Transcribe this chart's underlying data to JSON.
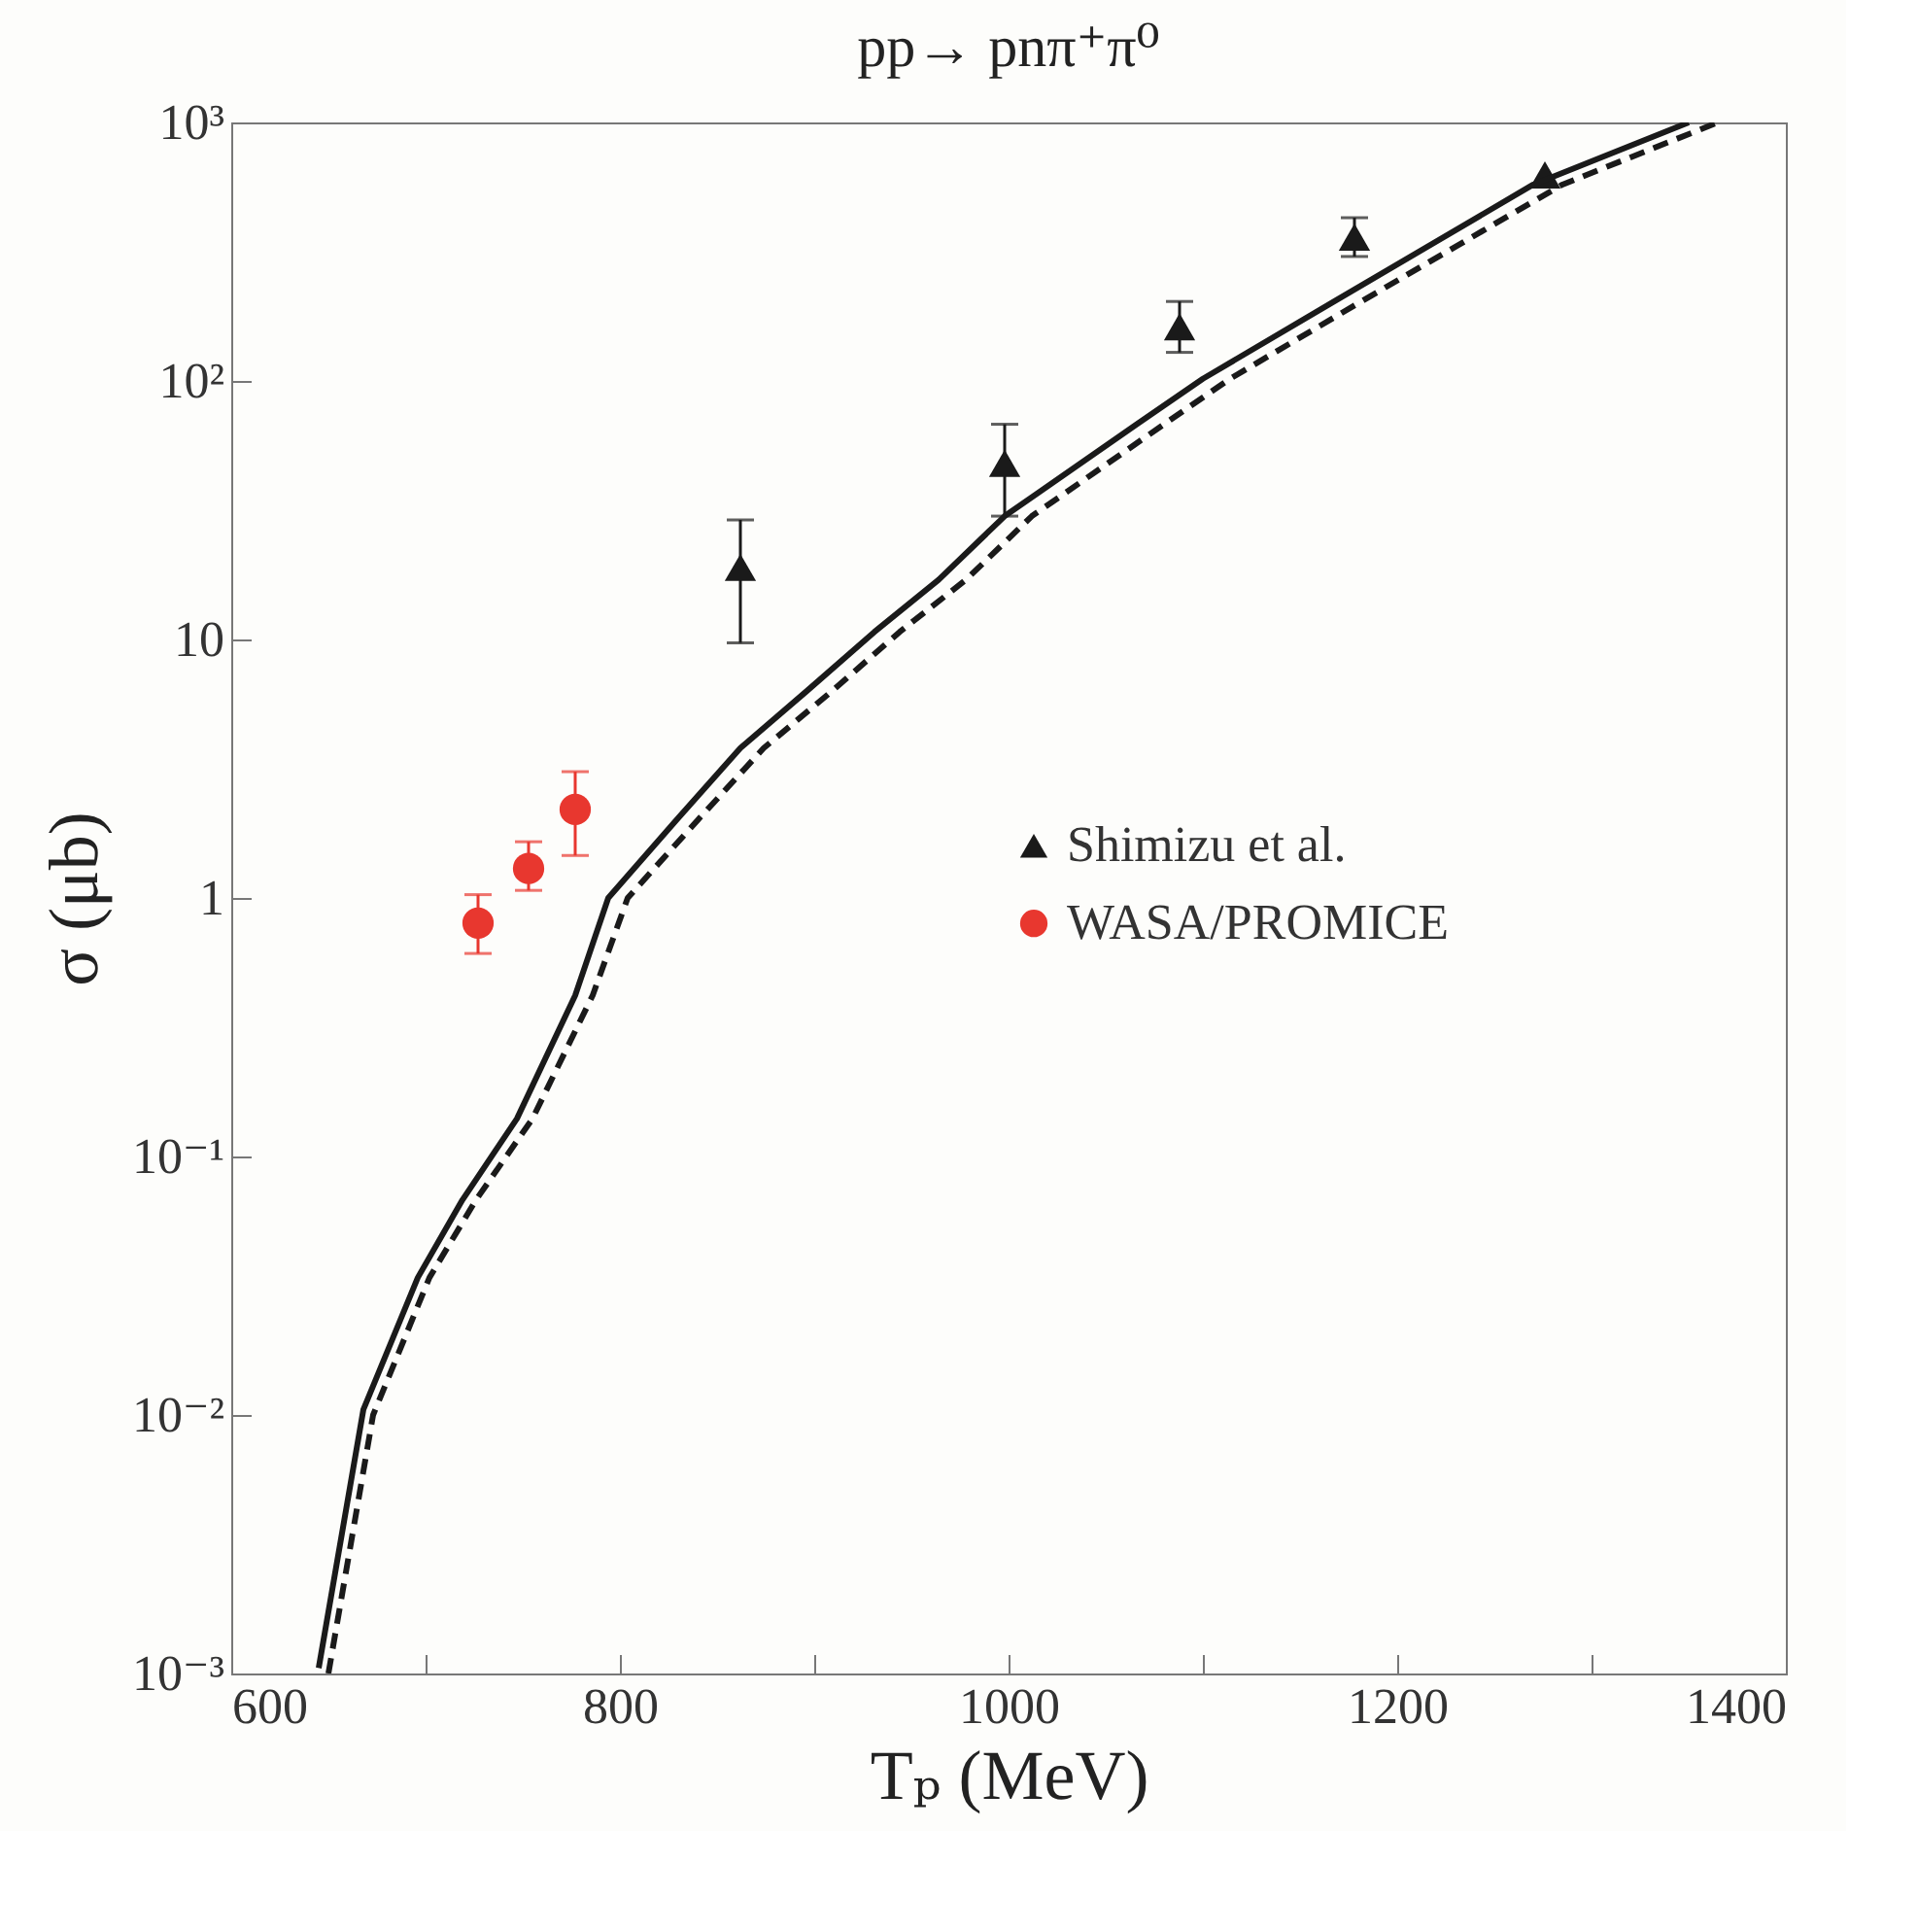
{
  "chart_data": {
    "type": "scatter",
    "title": "pp→ pnπ⁺π⁰",
    "xlabel": "Tₚ (MeV)",
    "ylabel": "σ (μb)",
    "log": "y",
    "grid": false,
    "legend": "right",
    "xlim": [
      600,
      1400
    ],
    "xticks": [
      600,
      {
        "value": 700,
        "label": null
      },
      800,
      {
        "value": 900,
        "label": null
      },
      1000,
      {
        "value": 1100,
        "label": null
      },
      1200,
      {
        "value": 1300,
        "label": null
      },
      1400
    ],
    "ylim": [
      0.001,
      1000
    ],
    "yticks": [
      {
        "value": 0.001,
        "label": "10⁻³"
      },
      {
        "value": 0.01,
        "label": "10⁻²"
      },
      {
        "value": 0.1,
        "label": "10⁻¹"
      },
      1,
      10,
      {
        "value": 100,
        "label": "10²"
      },
      {
        "value": 1000,
        "label": "10³"
      }
    ],
    "series": [
      {
        "name": "Shimizu et al.",
        "color": "#1a1a1a",
        "marker": "triangle",
        "x": [
          862,
          998,
          1088,
          1178,
          1276
        ],
        "values": [
          19,
          48,
          162,
          360,
          627
        ],
        "errors": [
          [
            9.7,
            29
          ],
          [
            30,
            68
          ],
          [
            129,
            203
          ],
          [
            303,
            428
          ],
          null
        ]
      },
      {
        "name": "WASA/PROMICE",
        "color": "#e8372f",
        "marker": "circle",
        "x": [
          727,
          753,
          777
        ],
        "values": [
          0.8,
          1.3,
          2.2
        ],
        "errors": [
          [
            0.61,
            1.03
          ],
          [
            1.07,
            1.65
          ],
          [
            1.46,
            3.08
          ]
        ]
      },
      {
        "type": "line",
        "color": "#1a1a1a",
        "line_style": "solid",
        "x": [
          645,
          668,
          696,
          719,
          747,
          777,
          794,
          829,
          862,
          896,
          931,
          964,
          998,
          1066,
          1100,
          1168,
          1270,
          1350
        ],
        "values": [
          0.00105,
          0.0105,
          0.034,
          0.068,
          0.14,
          0.42,
          1.0,
          2.0,
          3.8,
          6.3,
          10.7,
          17,
          30,
          68,
          102,
          204,
          575,
          1000
        ]
      },
      {
        "type": "line",
        "color": "#1a1a1a",
        "line_style": "dashed",
        "x": [
          650,
          673,
          702,
          726,
          755,
          786,
          804,
          840,
          874,
          909,
          944,
          978,
          1012,
          1080,
          1114,
          1182,
          1285,
          1365
        ],
        "values": [
          0.001,
          0.01,
          0.034,
          0.068,
          0.14,
          0.42,
          1.0,
          2.0,
          3.8,
          6.3,
          10.7,
          17,
          30,
          68,
          102,
          204,
          575,
          1000
        ]
      }
    ]
  }
}
